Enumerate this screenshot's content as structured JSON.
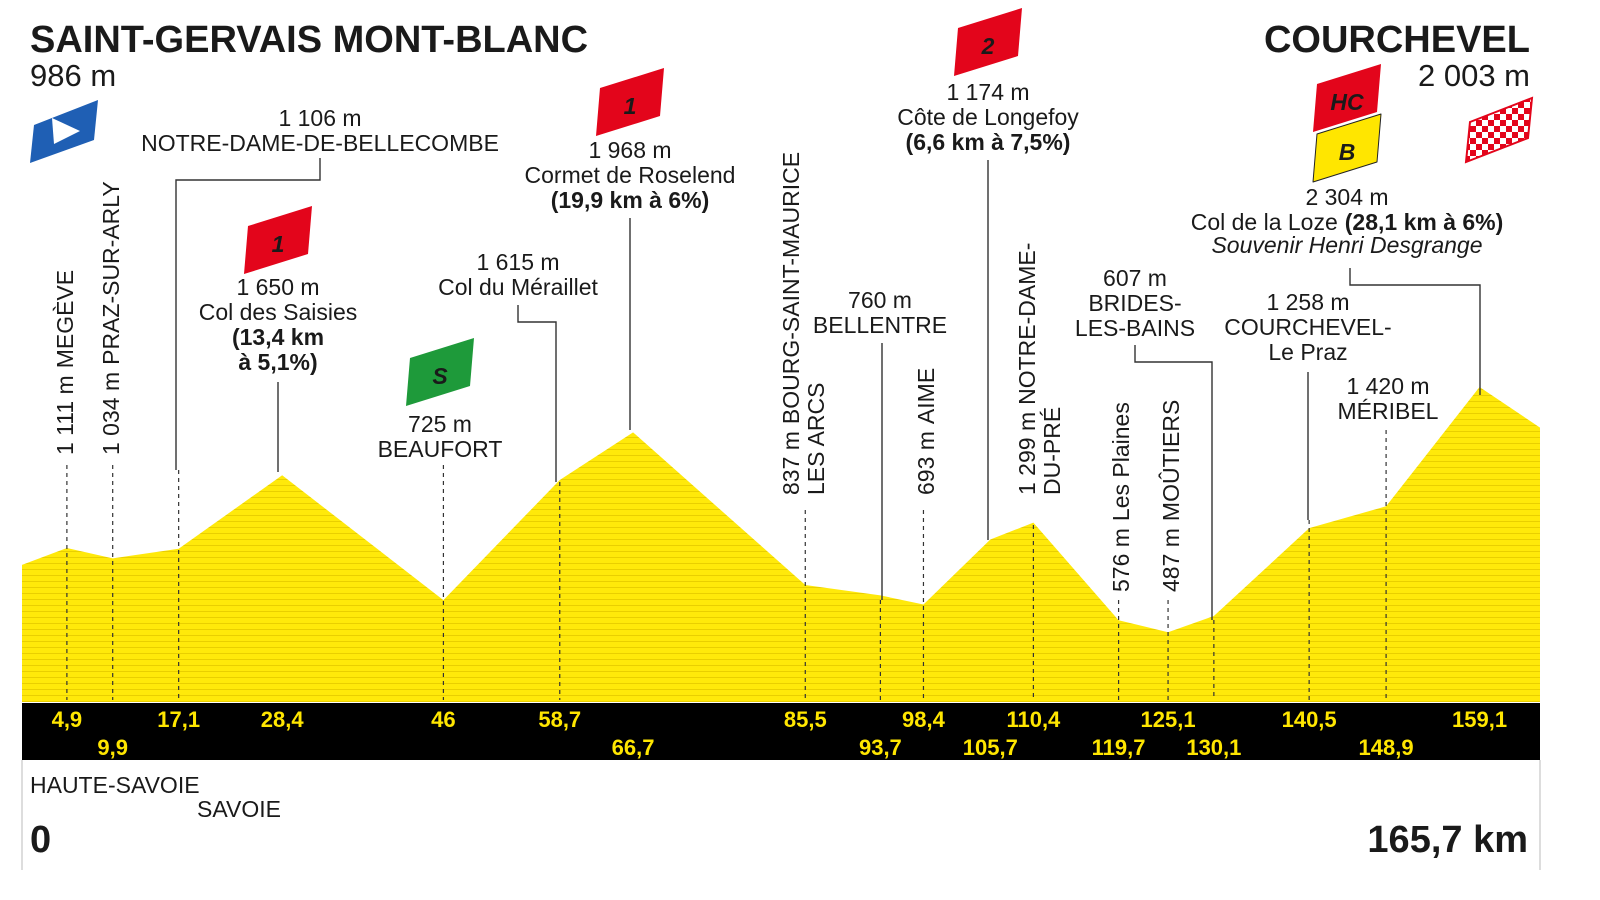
{
  "start": {
    "name": "SAINT-GERVAIS MONT-BLANC",
    "altitude": "986 m",
    "km": "0"
  },
  "finish": {
    "name": "COURCHEVEL",
    "altitude": "2 003 m",
    "km": "165,7 km"
  },
  "regions": [
    "HAUTE-SAVOIE",
    "SAVOIE"
  ],
  "waypoints": [
    {
      "km": "4,9",
      "altitude": "1 111 m",
      "name": [
        "MEGÈVE"
      ]
    },
    {
      "km": "9,9",
      "altitude": "1 034 m",
      "name": [
        "PRAZ-SUR-ARLY"
      ]
    },
    {
      "km": "17,1",
      "altitude": "1 106 m",
      "name": [
        "NOTRE-DAME-DE-BELLECOMBE"
      ]
    },
    {
      "km": "28,4",
      "altitude": "1 650 m",
      "name": [
        "Col des Saisies"
      ],
      "climb": [
        "(13,4 km",
        "à 5,1%)"
      ],
      "badges": [
        "1"
      ]
    },
    {
      "km": "46",
      "altitude": "725 m",
      "name": [
        "BEAUFORT"
      ],
      "badges": [
        "S"
      ]
    },
    {
      "km": "58,7",
      "altitude": "1 615 m",
      "name": [
        "Col du Méraillet"
      ]
    },
    {
      "km": "66,7",
      "altitude": "1 968 m",
      "name": [
        "Cormet de Roselend"
      ],
      "climb": [
        "(19,9 km à 6%)"
      ],
      "badges": [
        "1"
      ]
    },
    {
      "km": "85,5",
      "altitude": "837 m",
      "name": [
        "BOURG-SAINT-MAURICE",
        "LES ARCS"
      ]
    },
    {
      "km": "93,7",
      "altitude": "760 m",
      "name": [
        "BELLENTRE"
      ]
    },
    {
      "km": "98,4",
      "altitude": "693 m",
      "name": [
        "AIME"
      ]
    },
    {
      "km": "105,7",
      "altitude": "1 174 m",
      "name": [
        "Côte de Longefoy"
      ],
      "climb": [
        "(6,6 km à 7,5%)"
      ],
      "badges": [
        "2"
      ]
    },
    {
      "km": "110,4",
      "altitude": "1 299 m",
      "name": [
        "NOTRE-DAME-",
        "DU-PRÉ"
      ]
    },
    {
      "km": "119,7",
      "altitude": "576 m",
      "name": [
        "Les Plaines"
      ]
    },
    {
      "km": "125,1",
      "altitude": "487 m",
      "name": [
        "MOÛTIERS"
      ]
    },
    {
      "km": "130,1",
      "altitude": "607 m",
      "name": [
        "BRIDES-",
        "LES-BAINS"
      ]
    },
    {
      "km": "140,5",
      "altitude": "1 258 m",
      "name": [
        "COURCHEVEL-",
        "Le Praz"
      ]
    },
    {
      "km": "148,9",
      "altitude": "1 420 m",
      "name": [
        "MÉRIBEL"
      ]
    },
    {
      "km": "159,1",
      "altitude": "2 304 m",
      "name": [
        "Col de la Loze"
      ],
      "climb": [
        "(28,1 km à 6%)"
      ],
      "note": "Souvenir Henri Desgrange",
      "badges": [
        "HC",
        "B"
      ]
    }
  ]
}
